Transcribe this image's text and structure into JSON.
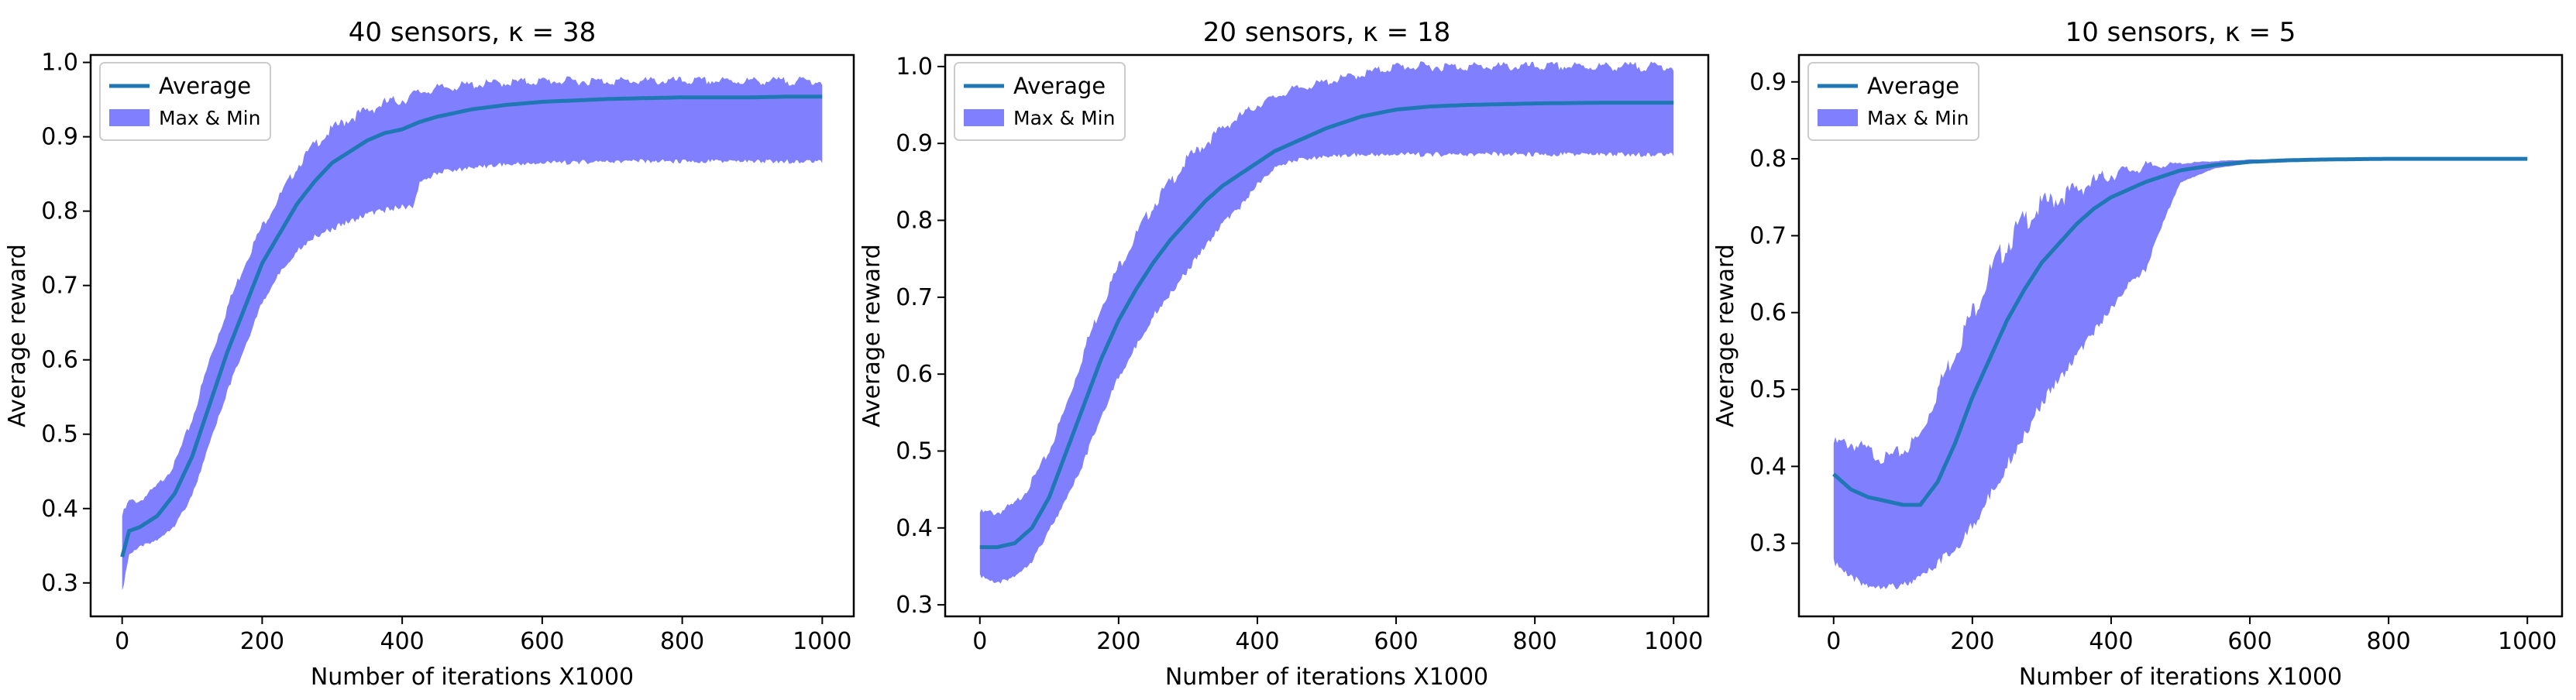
{
  "chart_data": [
    {
      "type": "area",
      "title": "40 sensors, κ = 38",
      "xlabel": "Number of iterations X1000",
      "ylabel": "Average reward",
      "xlim": [
        -45,
        1045
      ],
      "ylim": [
        0.255,
        1.01
      ],
      "xticks": [
        0,
        200,
        400,
        600,
        800,
        1000
      ],
      "yticks": [
        0.3,
        0.4,
        0.5,
        0.6,
        0.7,
        0.8,
        0.9,
        1.0
      ],
      "ytick_labels": [
        "0.3",
        "0.4",
        "0.5",
        "0.6",
        "0.7",
        "0.8",
        "0.9",
        "1.0"
      ],
      "legend": {
        "position": "top-left",
        "entries": [
          "Average",
          "Max & Min"
        ]
      },
      "colors": {
        "average": "#1f77b4",
        "band": "#8080ff"
      },
      "series": [
        {
          "name": "Average",
          "x": [
            0,
            10,
            25,
            50,
            75,
            100,
            125,
            150,
            175,
            200,
            225,
            250,
            275,
            300,
            325,
            350,
            375,
            400,
            425,
            450,
            475,
            500,
            550,
            600,
            650,
            700,
            750,
            800,
            850,
            900,
            950,
            1000
          ],
          "values": [
            0.335,
            0.37,
            0.375,
            0.39,
            0.42,
            0.47,
            0.54,
            0.61,
            0.67,
            0.73,
            0.77,
            0.81,
            0.84,
            0.865,
            0.88,
            0.895,
            0.905,
            0.91,
            0.92,
            0.927,
            0.932,
            0.937,
            0.943,
            0.947,
            0.949,
            0.951,
            0.952,
            0.953,
            0.953,
            0.953,
            0.954,
            0.954
          ]
        },
        {
          "name": "Max & Min",
          "x": [
            0,
            10,
            25,
            50,
            75,
            100,
            125,
            150,
            175,
            200,
            225,
            250,
            275,
            300,
            325,
            350,
            375,
            400,
            415,
            425,
            450,
            500,
            550,
            600,
            650,
            700,
            800,
            900,
            1000
          ],
          "upper": [
            0.39,
            0.41,
            0.41,
            0.43,
            0.46,
            0.52,
            0.6,
            0.67,
            0.73,
            0.78,
            0.82,
            0.86,
            0.89,
            0.91,
            0.925,
            0.935,
            0.945,
            0.95,
            0.955,
            0.96,
            0.965,
            0.97,
            0.973,
            0.975,
            0.975,
            0.975,
            0.975,
            0.975,
            0.975
          ],
          "lower": [
            0.29,
            0.34,
            0.35,
            0.36,
            0.38,
            0.42,
            0.49,
            0.56,
            0.62,
            0.68,
            0.72,
            0.75,
            0.77,
            0.78,
            0.79,
            0.8,
            0.805,
            0.81,
            0.81,
            0.84,
            0.855,
            0.862,
            0.866,
            0.868,
            0.869,
            0.87,
            0.87,
            0.87,
            0.87
          ]
        }
      ]
    },
    {
      "type": "area",
      "title": "20 sensors, κ = 18",
      "xlabel": "Number of iterations X1000",
      "ylabel": "Average reward",
      "xlim": [
        -50,
        1050
      ],
      "ylim": [
        0.285,
        1.015
      ],
      "xticks": [
        0,
        200,
        400,
        600,
        800,
        1000
      ],
      "yticks": [
        0.3,
        0.4,
        0.5,
        0.6,
        0.7,
        0.8,
        0.9,
        1.0
      ],
      "ytick_labels": [
        "0.3",
        "0.4",
        "0.5",
        "0.6",
        "0.7",
        "0.8",
        "0.9",
        "1.0"
      ],
      "legend": {
        "position": "top-left",
        "entries": [
          "Average",
          "Max & Min"
        ]
      },
      "colors": {
        "average": "#1f77b4",
        "band": "#8080ff"
      },
      "series": [
        {
          "name": "Average",
          "x": [
            0,
            25,
            50,
            75,
            100,
            125,
            150,
            175,
            200,
            225,
            250,
            275,
            300,
            325,
            350,
            375,
            400,
            425,
            450,
            500,
            550,
            600,
            650,
            700,
            800,
            900,
            1000
          ],
          "values": [
            0.375,
            0.375,
            0.38,
            0.4,
            0.44,
            0.5,
            0.56,
            0.62,
            0.67,
            0.71,
            0.745,
            0.775,
            0.8,
            0.825,
            0.845,
            0.86,
            0.875,
            0.89,
            0.9,
            0.92,
            0.935,
            0.944,
            0.948,
            0.95,
            0.952,
            0.953,
            0.953
          ]
        },
        {
          "name": "Max & Min",
          "x": [
            0,
            25,
            50,
            75,
            100,
            125,
            150,
            175,
            200,
            225,
            250,
            275,
            300,
            325,
            350,
            375,
            400,
            425,
            450,
            500,
            550,
            600,
            700,
            800,
            900,
            1000
          ],
          "upper": [
            0.42,
            0.42,
            0.43,
            0.46,
            0.5,
            0.56,
            0.63,
            0.69,
            0.74,
            0.78,
            0.82,
            0.85,
            0.88,
            0.9,
            0.92,
            0.935,
            0.95,
            0.96,
            0.97,
            0.98,
            0.99,
            1.0,
            1.0,
            1.0,
            1.0,
            1.0
          ],
          "lower": [
            0.34,
            0.33,
            0.34,
            0.36,
            0.4,
            0.44,
            0.49,
            0.55,
            0.6,
            0.64,
            0.68,
            0.71,
            0.74,
            0.77,
            0.8,
            0.82,
            0.85,
            0.87,
            0.88,
            0.886,
            0.888,
            0.889,
            0.889,
            0.889,
            0.889,
            0.889
          ]
        }
      ]
    },
    {
      "type": "area",
      "title": "10 sensors, κ = 5",
      "xlabel": "Number of iterations X1000",
      "ylabel": "Average reward",
      "xlim": [
        -50,
        1050
      ],
      "ylim": [
        0.205,
        0.935
      ],
      "xticks": [
        0,
        200,
        400,
        600,
        800,
        1000
      ],
      "yticks": [
        0.3,
        0.4,
        0.5,
        0.6,
        0.7,
        0.8,
        0.9
      ],
      "ytick_labels": [
        "0.3",
        "0.4",
        "0.5",
        "0.6",
        "0.7",
        "0.8",
        "0.9"
      ],
      "legend": {
        "position": "top-left",
        "entries": [
          "Average",
          "Max & Min"
        ]
      },
      "colors": {
        "average": "#1f77b4",
        "band": "#8080ff"
      },
      "series": [
        {
          "name": "Average",
          "x": [
            0,
            25,
            50,
            75,
            100,
            125,
            150,
            175,
            200,
            225,
            250,
            275,
            300,
            325,
            350,
            375,
            400,
            425,
            450,
            500,
            550,
            600,
            650,
            700,
            800,
            900,
            1000
          ],
          "values": [
            0.39,
            0.37,
            0.36,
            0.355,
            0.35,
            0.35,
            0.38,
            0.43,
            0.49,
            0.54,
            0.59,
            0.63,
            0.665,
            0.69,
            0.715,
            0.735,
            0.75,
            0.76,
            0.77,
            0.785,
            0.792,
            0.796,
            0.798,
            0.799,
            0.8,
            0.8,
            0.8
          ]
        },
        {
          "name": "Max & Min",
          "x": [
            0,
            25,
            50,
            75,
            100,
            125,
            150,
            175,
            200,
            225,
            250,
            275,
            300,
            325,
            350,
            375,
            400,
            425,
            450,
            475,
            500,
            550,
            600,
            700,
            800,
            900,
            1000
          ],
          "upper": [
            0.43,
            0.43,
            0.42,
            0.41,
            0.42,
            0.44,
            0.5,
            0.55,
            0.6,
            0.65,
            0.69,
            0.72,
            0.74,
            0.75,
            0.76,
            0.77,
            0.78,
            0.785,
            0.79,
            0.792,
            0.794,
            0.797,
            0.799,
            0.8,
            0.801,
            0.801,
            0.801
          ],
          "lower": [
            0.28,
            0.26,
            0.25,
            0.25,
            0.25,
            0.26,
            0.28,
            0.3,
            0.33,
            0.37,
            0.41,
            0.45,
            0.49,
            0.52,
            0.55,
            0.58,
            0.61,
            0.64,
            0.66,
            0.72,
            0.77,
            0.788,
            0.794,
            0.797,
            0.799,
            0.799,
            0.799
          ]
        }
      ]
    }
  ]
}
